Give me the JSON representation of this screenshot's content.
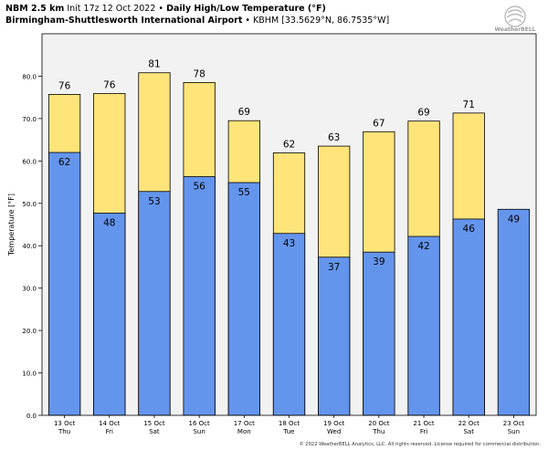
{
  "header": {
    "model": "NBM 2.5 km",
    "init": "Init 17z 12 Oct 2022",
    "bullet": "•",
    "title": "Daily High/Low Temperature (°F)",
    "location": "Birmingham-Shuttlesworth International Airport",
    "station": "KBHM [33.5629°N, 86.7535°W]"
  },
  "logo": {
    "text": "WeatherBELL",
    "icon": "swirl-logo-icon"
  },
  "footer": {
    "copyright": "© 2022 WeatherBELL Analytics, LLC. All rights reserved. License required for commercial distribution."
  },
  "colors": {
    "high": "#ffe47a",
    "low": "#6495ed",
    "plot_bg": "#f2f2f2",
    "outline": "#000000"
  },
  "chart_data": {
    "type": "bar",
    "categories": [
      "13 Oct\nThu",
      "14 Oct\nFri",
      "15 Oct\nSat",
      "16 Oct\nSun",
      "17 Oct\nMon",
      "18 Oct\nTue",
      "19 Oct\nWed",
      "20 Oct\nThu",
      "21 Oct\nFri",
      "22 Oct\nSat",
      "23 Oct\nSun"
    ],
    "series": [
      {
        "values": [
          75.7,
          75.9,
          80.8,
          78.5,
          69.5,
          61.9,
          63.5,
          66.9,
          69.4,
          71.3,
          null
        ],
        "labels": [
          "76",
          "76",
          "81",
          "78",
          "69",
          "62",
          "63",
          "67",
          "69",
          "71",
          ""
        ]
      },
      {
        "values": [
          62.0,
          47.7,
          52.8,
          56.3,
          54.9,
          42.9,
          37.3,
          38.5,
          42.2,
          46.3,
          48.6
        ],
        "labels": [
          "62",
          "48",
          "53",
          "56",
          "55",
          "43",
          "37",
          "39",
          "42",
          "46",
          "49"
        ]
      }
    ],
    "title": "Daily High/Low Temperature (°F)",
    "ylabel": "Temperature [°F]",
    "ylim": [
      0,
      90
    ],
    "yticks": [
      0,
      10,
      20,
      30,
      40,
      50,
      60,
      70,
      80
    ],
    "ytick_labels": [
      "0.0",
      "10.0",
      "20.0",
      "30.0",
      "40.0",
      "50.0",
      "60.0",
      "70.0",
      "80.0"
    ],
    "grid": false,
    "legend": "none"
  }
}
